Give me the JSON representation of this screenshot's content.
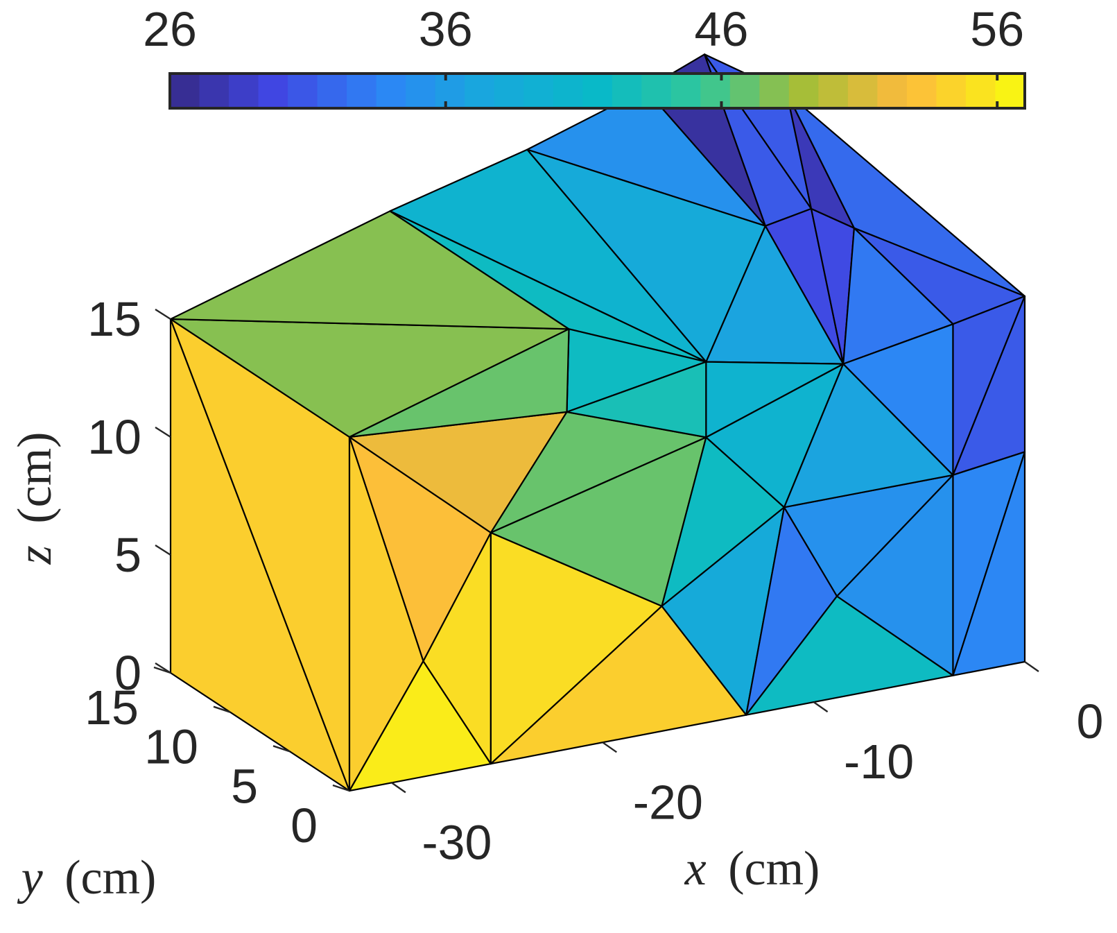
{
  "chart_data": {
    "type": "3d-surface",
    "colormap": "parula",
    "colorbar": {
      "orientation": "horizontal",
      "placement": "top",
      "range": [
        26,
        57
      ],
      "ticks": [
        26,
        36,
        46,
        56
      ],
      "tick_labels": [
        "26",
        "36",
        "46",
        "56"
      ]
    },
    "axes": {
      "x": {
        "label_var": "x",
        "label_unit": "(cm)",
        "ticks": [
          -30,
          -20,
          -10,
          0
        ],
        "tick_labels": [
          "-30",
          "-20",
          "-10",
          "0"
        ],
        "range": [
          -32,
          0
        ]
      },
      "y": {
        "label_var": "y",
        "label_unit": "(cm)",
        "ticks": [
          0,
          5,
          10,
          15
        ],
        "tick_labels": [
          "0",
          "5",
          "10",
          "15"
        ],
        "range": [
          0,
          15
        ]
      },
      "z": {
        "label_var": "z",
        "label_unit": "(cm)",
        "ticks": [
          0,
          5,
          10,
          15
        ],
        "tick_labels": [
          "0",
          "5",
          "10",
          "15"
        ],
        "range": [
          0,
          15
        ]
      }
    },
    "faces": {
      "front": {
        "plane": "y=0",
        "triangles": [
          [
            [
              -32,
              0,
              15
            ],
            [
              -25.3,
              0,
              9.8
            ],
            [
              -28.5,
              0,
              4.9
            ],
            53
          ],
          [
            [
              -32,
              0,
              15
            ],
            [
              -28.5,
              0,
              4.9
            ],
            [
              -32,
              0,
              0
            ],
            54
          ],
          [
            [
              -32,
              0,
              0
            ],
            [
              -28.5,
              0,
              4.9
            ],
            [
              -25.3,
              0,
              0
            ],
            56
          ],
          [
            [
              -28.5,
              0,
              4.9
            ],
            [
              -25.3,
              0,
              9.8
            ],
            [
              -25.3,
              0,
              0
            ],
            55
          ],
          [
            [
              -25.3,
              0,
              9.8
            ],
            [
              -17.2,
              0,
              5.3
            ],
            [
              -25.3,
              0,
              0
            ],
            55
          ],
          [
            [
              -25.3,
              0,
              0
            ],
            [
              -17.2,
              0,
              5.3
            ],
            [
              -13.2,
              0,
              0
            ],
            54
          ],
          [
            [
              -32,
              0,
              15
            ],
            [
              -21.7,
              0,
              14.3
            ],
            [
              -25.3,
              0,
              9.8
            ],
            52
          ],
          [
            [
              -25.3,
              0,
              9.8
            ],
            [
              -21.7,
              0,
              14.3
            ],
            [
              -15.1,
              0,
              12.1
            ],
            47
          ],
          [
            [
              -25.3,
              0,
              9.8
            ],
            [
              -15.1,
              0,
              12.1
            ],
            [
              -17.2,
              0,
              5.3
            ],
            47
          ],
          [
            [
              -21.7,
              0,
              14.3
            ],
            [
              -21.6,
              0,
              17.8
            ],
            [
              -15.1,
              0,
              15.3
            ],
            42
          ],
          [
            [
              -21.7,
              0,
              14.3
            ],
            [
              -15.1,
              0,
              15.3
            ],
            [
              -15.1,
              0,
              12.1
            ],
            43
          ],
          [
            [
              -32,
              0,
              15
            ],
            [
              -21.6,
              0,
              17.8
            ],
            [
              -21.7,
              0,
              14.3
            ],
            47
          ],
          [
            [
              -15.1,
              0,
              12.1
            ],
            [
              -11.4,
              0,
              8.5
            ],
            [
              -17.2,
              0,
              5.3
            ],
            42
          ],
          [
            [
              -15.1,
              0,
              12.1
            ],
            [
              -8.6,
              0,
              14.1
            ],
            [
              -11.4,
              0,
              8.5
            ],
            40
          ],
          [
            [
              -15.1,
              0,
              15.3
            ],
            [
              -8.6,
              0,
              14.1
            ],
            [
              -15.1,
              0,
              12.1
            ],
            40
          ],
          [
            [
              -17.2,
              0,
              5.3
            ],
            [
              -11.4,
              0,
              8.5
            ],
            [
              -13.2,
              0,
              0
            ],
            38
          ],
          [
            [
              -13.2,
              0,
              0
            ],
            [
              -11.4,
              0,
              8.5
            ],
            [
              -8.9,
              0,
              4.3
            ],
            33
          ],
          [
            [
              -13.2,
              0,
              0
            ],
            [
              -8.9,
              0,
              4.3
            ],
            [
              -3.4,
              0,
              0
            ],
            42
          ],
          [
            [
              -11.4,
              0,
              8.5
            ],
            [
              -3.4,
              0,
              8.5
            ],
            [
              -8.9,
              0,
              4.3
            ],
            35
          ],
          [
            [
              -8.9,
              0,
              4.3
            ],
            [
              -3.4,
              0,
              8.5
            ],
            [
              -3.4,
              0,
              0
            ],
            35
          ],
          [
            [
              -11.4,
              0,
              8.5
            ],
            [
              -8.6,
              0,
              14.1
            ],
            [
              -3.4,
              0,
              8.5
            ],
            37
          ],
          [
            [
              -8.6,
              0,
              14.1
            ],
            [
              -3.4,
              0,
              14.9
            ],
            [
              -3.4,
              0,
              8.5
            ],
            34
          ],
          [
            [
              -3.4,
              0,
              14.9
            ],
            [
              0,
              0,
              15.5
            ],
            [
              -3.4,
              0,
              8.5
            ],
            31
          ],
          [
            [
              -3.4,
              0,
              8.5
            ],
            [
              0,
              0,
              15.5
            ],
            [
              0,
              0,
              8.9
            ],
            31
          ],
          [
            [
              -3.4,
              0,
              8.5
            ],
            [
              0,
              0,
              8.9
            ],
            [
              -3.4,
              0,
              0
            ],
            34
          ],
          [
            [
              -3.4,
              0,
              0
            ],
            [
              0,
              0,
              8.9
            ],
            [
              0,
              0,
              0
            ],
            34
          ]
        ]
      },
      "left": {
        "plane": "x=-32",
        "triangles": [
          [
            [
              -32,
              15,
              15
            ],
            [
              -32,
              15,
              0
            ],
            [
              -32,
              0,
              0
            ],
            54
          ],
          [
            [
              -32,
              15,
              15
            ],
            [
              -32,
              0,
              0
            ],
            [
              -32,
              0,
              15
            ],
            54
          ]
        ]
      },
      "top": {
        "plane": "z=top",
        "triangles": [
          [
            [
              -32,
              15,
              15
            ],
            [
              -21.6,
              0,
              17.8
            ],
            [
              -32,
              0,
              15
            ],
            48
          ],
          [
            [
              -32,
              15,
              15
            ],
            [
              -21.6,
              15,
              17.8
            ],
            [
              -21.6,
              0,
              17.8
            ],
            48
          ],
          [
            [
              -21.6,
              15,
              17.8
            ],
            [
              -15.1,
              15,
              19.3
            ],
            [
              -15.1,
              0,
              15.3
            ],
            40
          ],
          [
            [
              -21.6,
              15,
              17.8
            ],
            [
              -15.1,
              0,
              15.3
            ],
            [
              -21.6,
              0,
              17.8
            ],
            42
          ],
          [
            [
              -15.1,
              15,
              19.3
            ],
            [
              -9.5,
              15,
              20.9
            ],
            [
              -8.9,
              6,
              18.0
            ],
            35
          ],
          [
            [
              -15.1,
              15,
              19.3
            ],
            [
              -8.9,
              6,
              18.0
            ],
            [
              -15.1,
              0,
              15.3
            ],
            38
          ],
          [
            [
              -15.1,
              0,
              15.3
            ],
            [
              -8.9,
              6,
              18.0
            ],
            [
              -8.6,
              0,
              14.1
            ],
            37
          ],
          [
            [
              -9.5,
              15,
              20.9
            ],
            [
              -6.7,
              15,
              21.9
            ],
            [
              -8.9,
              6,
              18.0
            ],
            27
          ],
          [
            [
              -6.7,
              15,
              21.9
            ],
            [
              -5.6,
              8,
              17.5
            ],
            [
              -8.9,
              6,
              18.0
            ],
            31
          ],
          [
            [
              -8.9,
              6,
              18.0
            ],
            [
              -5.6,
              8,
              17.5
            ],
            [
              -8.6,
              0,
              14.1
            ],
            30
          ],
          [
            [
              -5.6,
              8,
              17.5
            ],
            [
              -3.0,
              9,
              15.9
            ],
            [
              -8.6,
              0,
              14.1
            ],
            30
          ],
          [
            [
              -6.7,
              15,
              21.9
            ],
            [
              -2.8,
              15,
              19.6
            ],
            [
              -5.6,
              8,
              17.5
            ],
            31
          ],
          [
            [
              -5.6,
              8,
              17.5
            ],
            [
              -2.8,
              15,
              19.6
            ],
            [
              -3.0,
              9,
              15.9
            ],
            28
          ],
          [
            [
              -3.0,
              9,
              15.9
            ],
            [
              -2.8,
              15,
              19.6
            ],
            [
              0,
              0,
              15.5
            ],
            32
          ],
          [
            [
              -3.0,
              9,
              15.9
            ],
            [
              0,
              0,
              15.5
            ],
            [
              -3.4,
              0,
              14.9
            ],
            31
          ],
          [
            [
              -8.6,
              0,
              14.1
            ],
            [
              -3.0,
              9,
              15.9
            ],
            [
              -3.4,
              0,
              14.9
            ],
            33
          ]
        ]
      }
    }
  }
}
